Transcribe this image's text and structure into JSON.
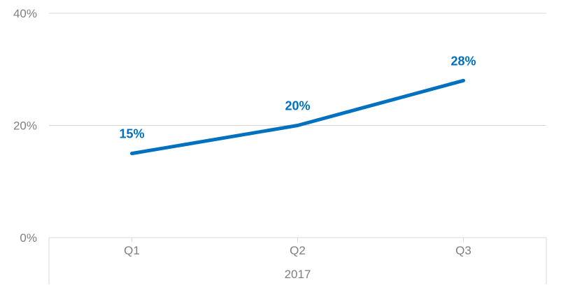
{
  "chart_data": {
    "type": "line",
    "categories": [
      "Q1",
      "Q2",
      "Q3"
    ],
    "group_label": "2017",
    "series": [
      {
        "values": [
          15,
          20,
          28
        ],
        "data_labels": [
          "15%",
          "20%",
          "28%"
        ],
        "color": "#0070c0"
      }
    ],
    "yticks": [
      0,
      20,
      40
    ],
    "ytick_labels": [
      "0%",
      "20%",
      "40%"
    ],
    "ylim": [
      0,
      40
    ],
    "grid": true,
    "legend": "none"
  }
}
